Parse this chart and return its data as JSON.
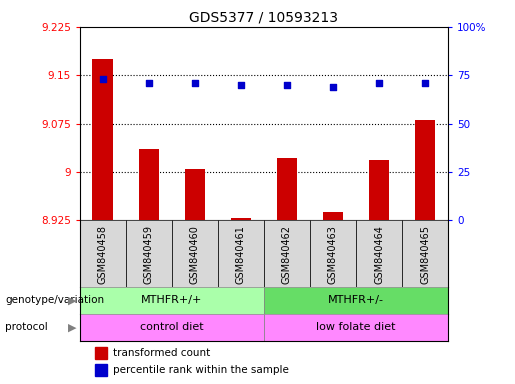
{
  "title": "GDS5377 / 10593213",
  "samples": [
    "GSM840458",
    "GSM840459",
    "GSM840460",
    "GSM840461",
    "GSM840462",
    "GSM840463",
    "GSM840464",
    "GSM840465"
  ],
  "transformed_count": [
    9.175,
    9.036,
    9.005,
    8.929,
    9.022,
    8.937,
    9.018,
    9.08
  ],
  "percentile_rank": [
    73,
    71,
    71,
    70,
    70,
    69,
    71,
    71
  ],
  "ylim_left": [
    8.925,
    9.225
  ],
  "ylim_right": [
    0,
    100
  ],
  "yticks_left": [
    8.925,
    9.0,
    9.075,
    9.15,
    9.225
  ],
  "yticks_right": [
    0,
    25,
    50,
    75,
    100
  ],
  "ytick_labels_left": [
    "8.925",
    "9",
    "9.075",
    "9.15",
    "9.225"
  ],
  "ytick_labels_right": [
    "0",
    "25",
    "50",
    "75",
    "100%"
  ],
  "hlines": [
    9.15,
    9.075,
    9.0
  ],
  "bar_color": "#cc0000",
  "dot_color": "#0000cc",
  "bar_bottom": 8.925,
  "geno_colors": [
    "#aaffaa",
    "#66dd66"
  ],
  "proto_color": "#ff88ff",
  "genotype_labels": [
    "MTHFR+/+",
    "MTHFR+/-"
  ],
  "protocol_labels": [
    "control diet",
    "low folate diet"
  ],
  "row_labels": [
    "genotype/variation",
    "protocol"
  ],
  "col_bg_color": "#d8d8d8",
  "plot_bg": "#ffffff",
  "legend_items": [
    {
      "color": "#cc0000",
      "label": "transformed count"
    },
    {
      "color": "#0000cc",
      "label": "percentile rank within the sample"
    }
  ]
}
